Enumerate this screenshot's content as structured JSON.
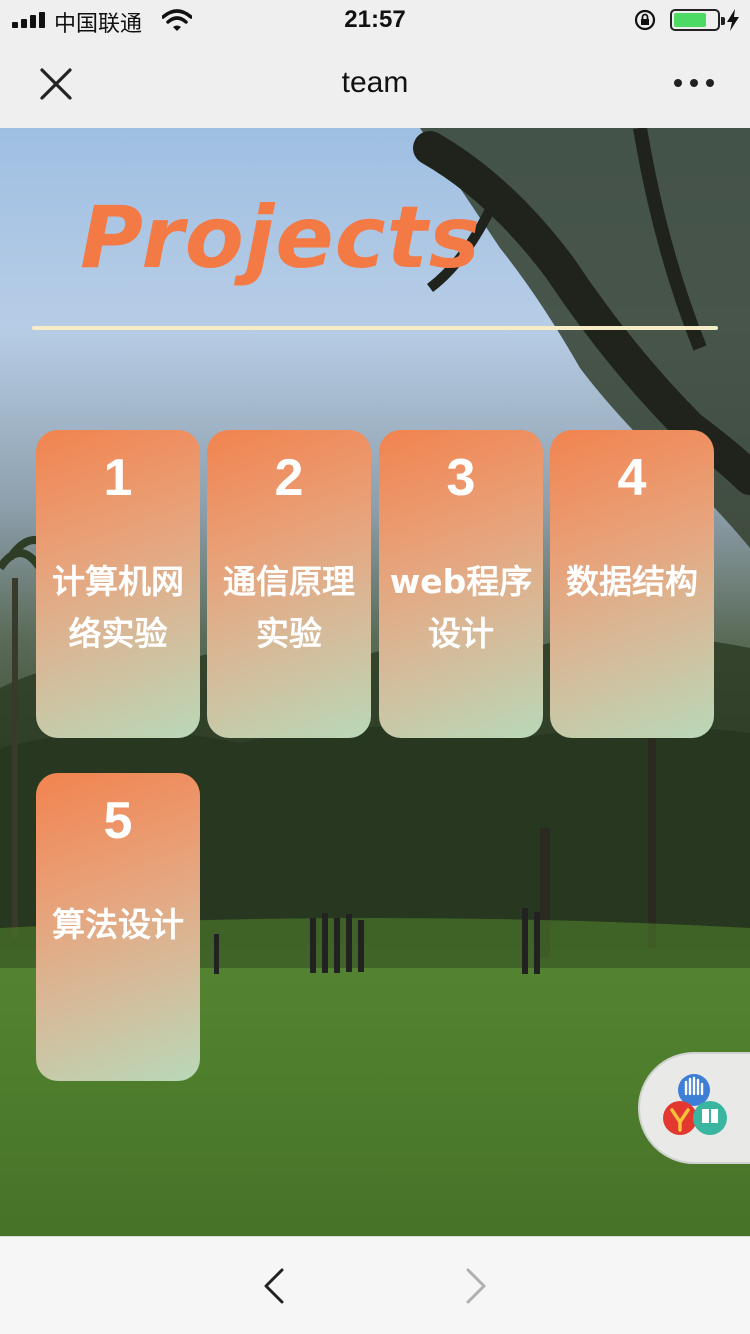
{
  "status_bar": {
    "carrier": "中国联通",
    "time": "21:57",
    "icons": [
      "signal-icon",
      "wifi-icon",
      "rotation-lock-icon",
      "battery-icon",
      "charging-icon"
    ],
    "battery_color": "#4cd964"
  },
  "header": {
    "title": "team",
    "close_icon": "close-icon",
    "more_icon": "more-icon"
  },
  "main": {
    "heading": "Projects",
    "heading_color": "#f47a45",
    "cards": [
      {
        "number": "1",
        "label": "计算机网络实验"
      },
      {
        "number": "2",
        "label": "通信原理实验"
      },
      {
        "number": "3",
        "label": "web程序设计"
      },
      {
        "number": "4",
        "label": "数据结构"
      },
      {
        "number": "5",
        "label": "算法设计"
      }
    ]
  },
  "toolbar": {
    "back_icon": "chevron-left-icon",
    "forward_icon": "chevron-right-icon"
  }
}
